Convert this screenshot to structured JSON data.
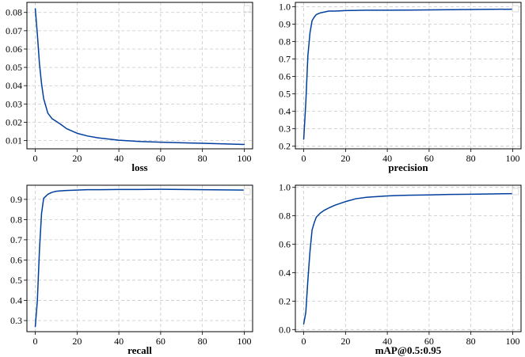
{
  "chart_data": [
    {
      "type": "line",
      "xlabel": "loss",
      "xlim": [
        -4,
        104
      ],
      "ylim": [
        0.0055,
        0.0855
      ],
      "xticks": [
        0,
        20,
        40,
        60,
        80,
        100
      ],
      "yticks": [
        0.01,
        0.02,
        0.03,
        0.04,
        0.05,
        0.06,
        0.07,
        0.08
      ],
      "ytick_labels": [
        "0.01",
        "0.02",
        "0.03",
        "0.04",
        "0.05",
        "0.06",
        "0.07",
        "0.08"
      ],
      "grid": true,
      "legend": "top-right",
      "series": [
        {
          "color": "#003f9e",
          "x": [
            0,
            1,
            2,
            3,
            4,
            5,
            6,
            8,
            10,
            12,
            15,
            20,
            25,
            30,
            40,
            50,
            60,
            70,
            80,
            90,
            100
          ],
          "y": [
            0.082,
            0.068,
            0.052,
            0.041,
            0.033,
            0.029,
            0.025,
            0.022,
            0.0205,
            0.019,
            0.0165,
            0.014,
            0.0125,
            0.0115,
            0.0102,
            0.0095,
            0.0091,
            0.0088,
            0.0085,
            0.0082,
            0.0079
          ]
        }
      ]
    },
    {
      "type": "line",
      "xlabel": "precision",
      "xlim": [
        -4,
        104
      ],
      "ylim": [
        0.185,
        1.025
      ],
      "xticks": [
        0,
        20,
        40,
        60,
        80,
        100
      ],
      "yticks": [
        0.2,
        0.3,
        0.4,
        0.5,
        0.6,
        0.7,
        0.8,
        0.9,
        1.0
      ],
      "ytick_labels": [
        "0.2",
        "0.3",
        "0.4",
        "0.5",
        "0.6",
        "0.7",
        "0.8",
        "0.9",
        "1.0"
      ],
      "grid": true,
      "legend": "top-right",
      "series": [
        {
          "color": "#003f9e",
          "x": [
            0,
            1,
            2,
            3,
            4,
            5,
            6,
            8,
            10,
            12,
            15,
            20,
            25,
            30,
            40,
            50,
            60,
            70,
            80,
            90,
            100
          ],
          "y": [
            0.24,
            0.45,
            0.72,
            0.85,
            0.92,
            0.94,
            0.955,
            0.965,
            0.97,
            0.975,
            0.975,
            0.978,
            0.979,
            0.98,
            0.98,
            0.981,
            0.982,
            0.983,
            0.984,
            0.985,
            0.986
          ]
        }
      ]
    },
    {
      "type": "line",
      "xlabel": "recall",
      "xlim": [
        -4,
        104
      ],
      "ylim": [
        0.245,
        0.97
      ],
      "xticks": [
        0,
        20,
        40,
        60,
        80,
        100
      ],
      "yticks": [
        0.3,
        0.4,
        0.5,
        0.6,
        0.7,
        0.8,
        0.9
      ],
      "ytick_labels": [
        "0.3",
        "0.4",
        "0.5",
        "0.6",
        "0.7",
        "0.8",
        "0.9"
      ],
      "grid": true,
      "legend": "top-right",
      "series": [
        {
          "color": "#003f9e",
          "x": [
            0,
            1,
            2,
            3,
            4,
            5,
            6,
            8,
            10,
            12,
            15,
            20,
            25,
            30,
            40,
            50,
            60,
            70,
            80,
            90,
            100
          ],
          "y": [
            0.27,
            0.4,
            0.65,
            0.83,
            0.905,
            0.915,
            0.925,
            0.935,
            0.94,
            0.942,
            0.944,
            0.946,
            0.948,
            0.948,
            0.949,
            0.949,
            0.95,
            0.949,
            0.948,
            0.947,
            0.946
          ]
        }
      ]
    },
    {
      "type": "line",
      "xlabel": "mAP@0.5:0.95",
      "xlim": [
        -4,
        104
      ],
      "ylim": [
        -0.015,
        1.015
      ],
      "xticks": [
        0,
        20,
        40,
        60,
        80,
        100
      ],
      "yticks": [
        0.0,
        0.2,
        0.4,
        0.6,
        0.8,
        1.0
      ],
      "ytick_labels": [
        "0.0",
        "0.2",
        "0.4",
        "0.6",
        "0.8",
        "1.0"
      ],
      "grid": true,
      "legend": "top-right",
      "series": [
        {
          "color": "#003f9e",
          "x": [
            0,
            1,
            2,
            3,
            4,
            5,
            6,
            8,
            10,
            12,
            15,
            20,
            25,
            30,
            40,
            50,
            60,
            70,
            80,
            90,
            100
          ],
          "y": [
            0.04,
            0.12,
            0.35,
            0.55,
            0.7,
            0.75,
            0.79,
            0.82,
            0.84,
            0.855,
            0.875,
            0.9,
            0.92,
            0.93,
            0.94,
            0.945,
            0.947,
            0.95,
            0.952,
            0.954,
            0.956
          ]
        }
      ]
    }
  ]
}
